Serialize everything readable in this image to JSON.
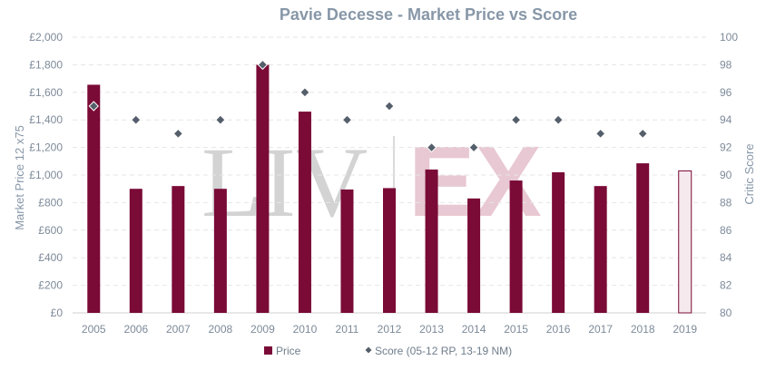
{
  "chart_data": {
    "type": "bar",
    "title": "Pavie Decesse - Market Price vs Score",
    "categories": [
      "2005",
      "2006",
      "2007",
      "2008",
      "2009",
      "2010",
      "2011",
      "2012",
      "2013",
      "2014",
      "2015",
      "2016",
      "2017",
      "2018",
      "2019"
    ],
    "series": [
      {
        "name": "Price",
        "type": "bar",
        "axis": "left",
        "color": "#7a0a36",
        "values": [
          1655,
          900,
          920,
          900,
          1800,
          1460,
          895,
          905,
          1040,
          830,
          960,
          1020,
          920,
          1085,
          1030
        ],
        "hollow_categories": [
          "2019"
        ]
      },
      {
        "name": "Score (05-12 RP, 13-19 NM)",
        "type": "scatter",
        "axis": "right",
        "color": "#555f6b",
        "marker": "diamond",
        "values": [
          95,
          94,
          93,
          94,
          98,
          96,
          94,
          95,
          92,
          92,
          94,
          94,
          93,
          93,
          null
        ]
      }
    ],
    "ylabel": "Market Price 12 x75",
    "y2label": "Critic Score",
    "ylim": [
      0,
      2000
    ],
    "y2lim": [
      80,
      100
    ],
    "yticks": [
      "£0",
      "£200",
      "£400",
      "£600",
      "£800",
      "£1,000",
      "£1,200",
      "£1,400",
      "£1,600",
      "£1,800",
      "£2,000"
    ],
    "y2ticks": [
      "80",
      "82",
      "84",
      "86",
      "88",
      "90",
      "92",
      "94",
      "96",
      "98",
      "100"
    ],
    "grid": true,
    "legend_position": "bottom",
    "watermark": {
      "left": "LIV",
      "right": "EX"
    }
  },
  "colors": {
    "bar": "#7a0a36",
    "bar_hollow_fill": "#f5e9ee",
    "marker": "#555f6b",
    "text": "#8797a8"
  }
}
